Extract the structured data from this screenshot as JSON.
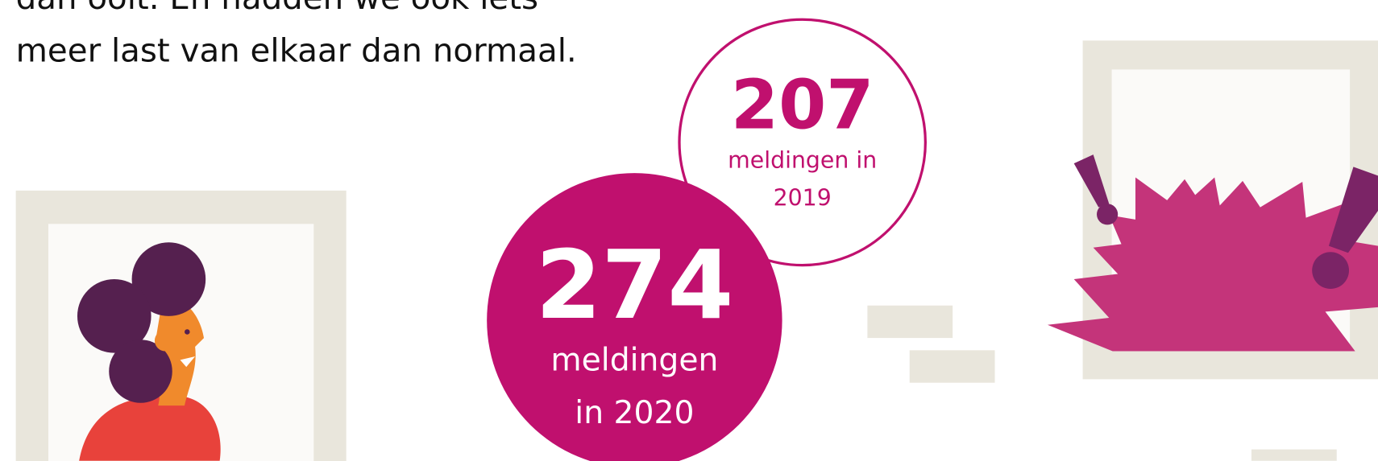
{
  "intro": {
    "lines": [
      "dan ooit. En hadden we ook iets",
      "meer last van elkaar dan normaal."
    ]
  },
  "stats": [
    {
      "number": "207",
      "lines": [
        "meldingen in",
        "2019"
      ]
    },
    {
      "number": "274",
      "lines": [
        "meldingen",
        "in 2020"
      ]
    }
  ]
}
